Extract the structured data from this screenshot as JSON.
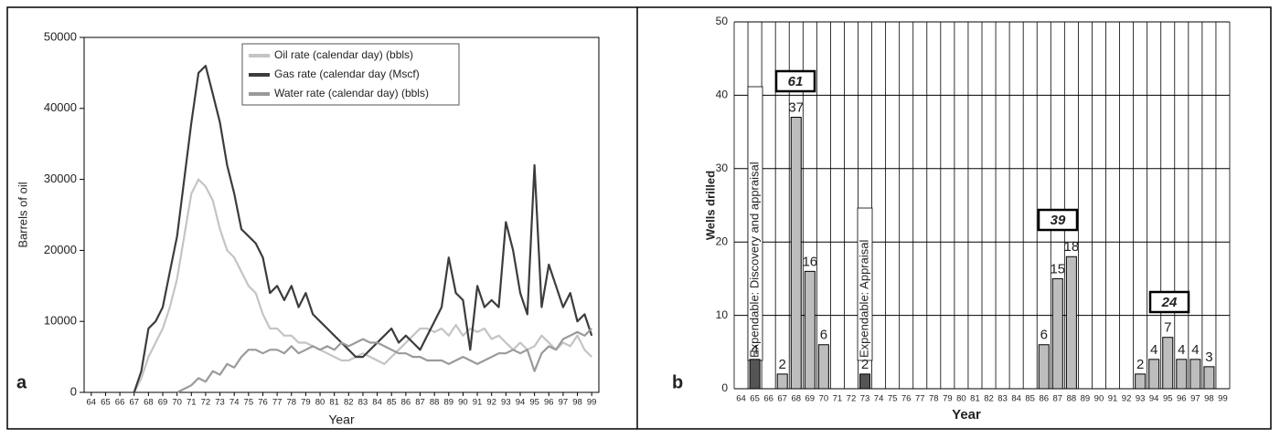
{
  "chart_data": [
    {
      "type": "line",
      "panel": "a",
      "ylabel": "Barrels of oil",
      "xlabel": "Year",
      "xlim": [
        63.5,
        99.5
      ],
      "xticks": [
        64,
        65,
        66,
        67,
        68,
        69,
        70,
        71,
        72,
        73,
        74,
        75,
        76,
        77,
        78,
        79,
        80,
        81,
        82,
        83,
        84,
        85,
        86,
        87,
        88,
        89,
        90,
        91,
        92,
        93,
        94,
        95,
        96,
        97,
        98,
        99
      ],
      "ylim": [
        0,
        50000
      ],
      "yticks": [
        0,
        10000,
        20000,
        30000,
        40000,
        50000
      ],
      "x": [
        67,
        67.5,
        68,
        68.5,
        69,
        69.5,
        70,
        70.5,
        71,
        71.5,
        72,
        72.5,
        73,
        73.5,
        74,
        74.5,
        75,
        75.5,
        76,
        76.5,
        77,
        77.5,
        78,
        78.5,
        79,
        79.5,
        80,
        80.5,
        81,
        81.5,
        82,
        82.5,
        83,
        83.5,
        84,
        84.5,
        85,
        85.5,
        86,
        86.5,
        87,
        87.5,
        88,
        88.5,
        89,
        89.5,
        90,
        90.5,
        91,
        91.5,
        92,
        92.5,
        93,
        93.5,
        94,
        94.5,
        95,
        95.5,
        96,
        96.5,
        97,
        97.5,
        98,
        98.5,
        99
      ],
      "series": [
        {
          "name": "Oil rate (calendar day) (bbls)",
          "color": "#c4c4c4",
          "values": [
            0,
            2000,
            5000,
            7000,
            9000,
            12000,
            16000,
            22000,
            28000,
            30000,
            29000,
            27000,
            23000,
            20000,
            19000,
            17000,
            15000,
            14000,
            11000,
            9000,
            9000,
            8000,
            8000,
            7000,
            7000,
            6500,
            6000,
            5500,
            5000,
            4500,
            4500,
            5000,
            5500,
            5000,
            4500,
            4000,
            5000,
            6000,
            7000,
            8000,
            9000,
            9000,
            8500,
            9000,
            8000,
            9500,
            8000,
            9000,
            8500,
            9000,
            7500,
            8000,
            7000,
            6000,
            7000,
            6000,
            6500,
            8000,
            7000,
            6000,
            7000,
            6500,
            8000,
            6000,
            5000
          ]
        },
        {
          "name": "Gas rate (calendar day (Mscf)",
          "color": "#3c3c3c",
          "values": [
            0,
            3000,
            9000,
            10000,
            12000,
            17000,
            22000,
            30000,
            38000,
            45000,
            46000,
            42000,
            38000,
            32000,
            28000,
            23000,
            22000,
            21000,
            19000,
            14000,
            15000,
            13000,
            15000,
            12000,
            14000,
            11000,
            10000,
            9000,
            8000,
            7000,
            6000,
            5000,
            5000,
            6000,
            7000,
            8000,
            9000,
            7000,
            8000,
            7000,
            6000,
            8000,
            10000,
            12000,
            19000,
            14000,
            13000,
            6000,
            15000,
            12000,
            13000,
            12000,
            24000,
            20000,
            14000,
            11000,
            32000,
            12000,
            18000,
            15000,
            12000,
            14000,
            10000,
            11000,
            8000
          ]
        },
        {
          "name": "Water rate (calendar day) (bbls)",
          "color": "#9a9a9a",
          "values": [
            null,
            null,
            null,
            null,
            null,
            null,
            0,
            500,
            1000,
            2000,
            1500,
            3000,
            2500,
            4000,
            3500,
            5000,
            6000,
            6000,
            5500,
            6000,
            6000,
            5500,
            6500,
            5500,
            6000,
            6500,
            6000,
            6500,
            6000,
            7000,
            6500,
            7000,
            7500,
            7000,
            7000,
            6500,
            6000,
            5500,
            5500,
            5000,
            5000,
            4500,
            4500,
            4500,
            4000,
            4500,
            5000,
            4500,
            4000,
            4500,
            5000,
            5500,
            5500,
            6000,
            5500,
            6000,
            3000,
            5500,
            6500,
            6000,
            7500,
            8000,
            8500,
            8000,
            9000
          ]
        }
      ]
    },
    {
      "type": "bar",
      "panel": "b",
      "ylabel": "Wells drilled",
      "xlabel": "Year",
      "categories": [
        "64",
        "65",
        "66",
        "67",
        "68",
        "69",
        "70",
        "71",
        "72",
        "73",
        "74",
        "75",
        "76",
        "77",
        "78",
        "79",
        "80",
        "81",
        "82",
        "83",
        "84",
        "85",
        "86",
        "87",
        "88",
        "89",
        "90",
        "91",
        "92",
        "93",
        "94",
        "95",
        "96",
        "97",
        "98",
        "99"
      ],
      "ylim": [
        0,
        50
      ],
      "yticks": [
        0,
        10,
        20,
        30,
        40,
        50
      ],
      "grid": true,
      "series": [
        {
          "color": "#555555",
          "values": [
            null,
            4,
            null,
            null,
            null,
            null,
            null,
            null,
            null,
            2,
            null,
            null,
            null,
            null,
            null,
            null,
            null,
            null,
            null,
            null,
            null,
            null,
            null,
            null,
            null,
            null,
            null,
            null,
            null,
            null,
            null,
            null,
            null,
            null,
            null,
            null
          ]
        },
        {
          "color": "#bdbdbd",
          "values": [
            null,
            null,
            null,
            2,
            37,
            16,
            6,
            null,
            null,
            null,
            null,
            null,
            null,
            null,
            null,
            null,
            null,
            null,
            null,
            null,
            null,
            null,
            6,
            15,
            18,
            null,
            null,
            null,
            null,
            2,
            4,
            7,
            4,
            4,
            3,
            null
          ]
        }
      ],
      "totals": [
        61,
        39,
        24
      ],
      "annotations": [
        "Expendable: Discovery and appraisal",
        "Expendable: Appraisal"
      ]
    }
  ]
}
